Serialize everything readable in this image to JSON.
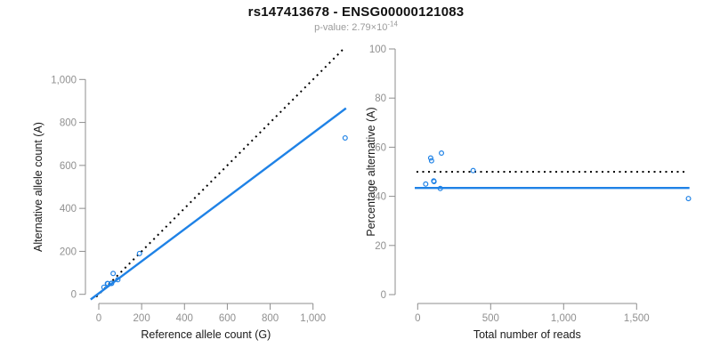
{
  "header": {
    "title": "rs147413678 - ENSG00000121083",
    "pvalue_prefix": "p-value: 2.79×10",
    "pvalue_exponent": "-14"
  },
  "colors": {
    "accent_blue": "#1f82e6",
    "dotted_black": "#000000",
    "axis_gray": "#8e8e8e",
    "tick_label_gray": "#909090",
    "axis_title_black": "#1a1a1a"
  },
  "chart_data": [
    {
      "type": "scatter",
      "panel": "allele-counts",
      "xlabel": "Reference allele count (G)",
      "ylabel": "Alternative allele count (A)",
      "xlim": [
        0,
        1000
      ],
      "ylim": [
        0,
        1000
      ],
      "grid": false,
      "xticks": {
        "values": [
          0,
          200,
          400,
          600,
          800,
          1000
        ],
        "labels": [
          "0",
          "200",
          "400",
          "600",
          "800",
          "1,000"
        ]
      },
      "yticks": {
        "values": [
          0,
          200,
          400,
          600,
          800,
          1000
        ],
        "labels": [
          "0",
          "200",
          "400",
          "600",
          "800",
          "1,000"
        ]
      },
      "points": [
        [
          24,
          33
        ],
        [
          40,
          50
        ],
        [
          42,
          50
        ],
        [
          59,
          51
        ],
        [
          60,
          51
        ],
        [
          89,
          68
        ],
        [
          67,
          97
        ],
        [
          190,
          190
        ],
        [
          1150,
          728
        ]
      ],
      "lines": [
        {
          "name": "identity-line",
          "style": "dotted",
          "color": "#000000",
          "from": [
            -12,
            -12
          ],
          "to": [
            1140,
            1140
          ]
        },
        {
          "name": "fit-line",
          "style": "solid",
          "color": "#1f82e6",
          "from": [
            -38,
            -24
          ],
          "to": [
            1154,
            866
          ]
        }
      ]
    },
    {
      "type": "scatter",
      "panel": "percentage-alternative",
      "xlabel": "Total number of reads",
      "ylabel": "Percentage alternative (A)",
      "xlim": [
        0,
        1500
      ],
      "ylim": [
        0,
        100
      ],
      "grid": false,
      "xticks": {
        "values": [
          0,
          500,
          1000,
          1500
        ],
        "labels": [
          "0",
          "500",
          "1,000",
          "1,500"
        ]
      },
      "yticks": {
        "values": [
          0,
          20,
          40,
          60,
          80,
          100
        ],
        "labels": [
          "0",
          "20",
          "40",
          "60",
          "80",
          "100"
        ]
      },
      "points": [
        [
          55,
          45
        ],
        [
          89,
          55.6
        ],
        [
          95,
          54.5
        ],
        [
          110,
          46.3
        ],
        [
          112,
          46
        ],
        [
          155,
          43.2
        ],
        [
          163,
          57.6
        ],
        [
          380,
          50.5
        ],
        [
          1855,
          39.1
        ]
      ],
      "lines": [
        {
          "name": "expected-line",
          "style": "dotted",
          "color": "#000000",
          "from": [
            -8,
            50
          ],
          "to": [
            1840,
            50
          ]
        },
        {
          "name": "fit-line",
          "style": "solid",
          "color": "#1f82e6",
          "from": [
            -20,
            43.4
          ],
          "to": [
            1862,
            43.4
          ]
        }
      ]
    }
  ]
}
